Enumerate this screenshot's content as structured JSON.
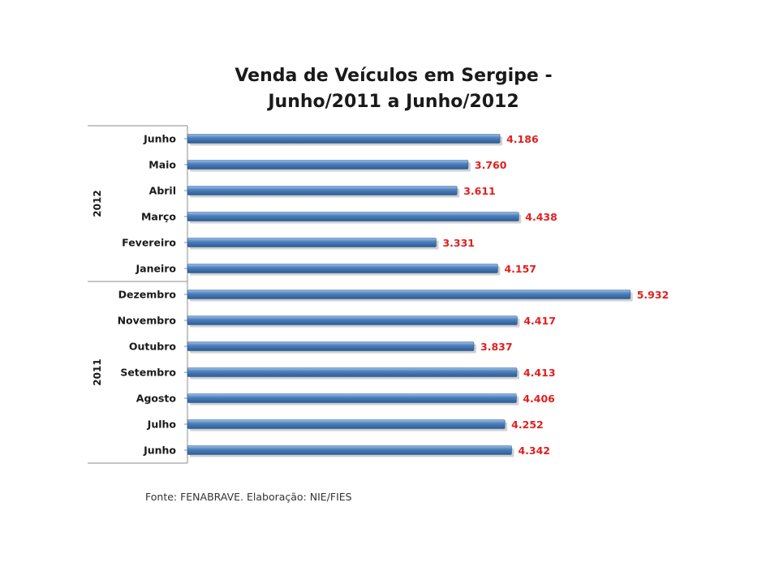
{
  "chart_data": {
    "type": "bar",
    "orientation": "horizontal",
    "title": [
      "Venda de Veículos em Sergipe -",
      "Junho/2011 a Junho/2012"
    ],
    "groups": [
      {
        "label": "2012",
        "categories": [
          "Junho",
          "Maio",
          "Abril",
          "Março",
          "Fevereiro",
          "Janeiro"
        ]
      },
      {
        "label": "2011",
        "categories": [
          "Dezembro",
          "Novembro",
          "Outubro",
          "Setembro",
          "Agosto",
          "Julho",
          "Junho"
        ]
      }
    ],
    "values": [
      4186,
      3760,
      3611,
      4438,
      3331,
      4157,
      5932,
      4417,
      3837,
      4413,
      4406,
      4252,
      4342
    ],
    "value_labels": [
      "4.186",
      "3.760",
      "3.611",
      "4.438",
      "3.331",
      "4.157",
      "5.932",
      "4.417",
      "3.837",
      "4.413",
      "4.406",
      "4.252",
      "4.342"
    ],
    "xlim": [
      0,
      6500
    ],
    "grid": false,
    "legend": "none",
    "colors": {
      "bar": "#4f81bd",
      "bar_dark": "#2c5c94",
      "bar_light": "#9ec0e8",
      "value_label": "#e41e1e",
      "axis": "#8c8c8c"
    }
  },
  "source_note": "Fonte: FENABRAVE. Elaboração: NIE/FIES"
}
